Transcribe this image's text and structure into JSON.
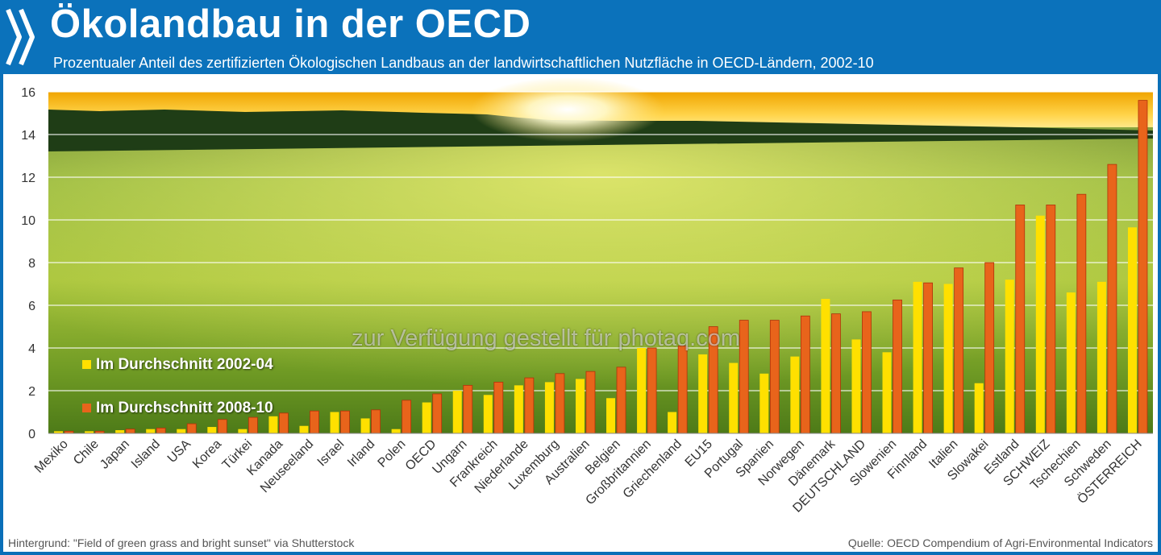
{
  "header": {
    "title": "Ökolandbau in der OECD",
    "subtitle": "Prozentualer Anteil des zertifizierten Ökologischen Landbaus an der landwirtschaftlichen Nutzfläche in OECD-Ländern, 2002-10"
  },
  "footer": {
    "left": "Hintergrund: \"Field of green grass and bright sunset\" via Shutterstock",
    "right": "Quelle: OECD Compendium of Agri-Environmental Indicators"
  },
  "watermark": "zur Verfügung gestellt für photaq.com",
  "colors": {
    "header_bg": "#0b72bb",
    "series_1": "#ffe000",
    "series_2": "#e8641b",
    "bar_outline": "#b0320a",
    "gridline": "#ffffff"
  },
  "chart_data": {
    "type": "bar",
    "categories": [
      "Mexiko",
      "Chile",
      "Japan",
      "Island",
      "USA",
      "Korea",
      "Türkei",
      "Kanada",
      "Neuseeland",
      "Israel",
      "Irland",
      "Polen",
      "OECD",
      "Ungarn",
      "Frankreich",
      "Niederlande",
      "Luxemburg",
      "Australien",
      "Belgien",
      "Großbritannien",
      "Griechenland",
      "EU15",
      "Portugal",
      "Spanien",
      "Norwegen",
      "Dänemark",
      "DEUTSCHLAND",
      "Slowenien",
      "Finnland",
      "Italien",
      "Slowakei",
      "Estland",
      "SCHWEIZ",
      "Tschechien",
      "Schweden",
      "ÖSTERREICH"
    ],
    "series": [
      {
        "name": "Im Durchschnitt 2002-04",
        "values": [
          0.1,
          0.1,
          0.15,
          0.2,
          0.2,
          0.3,
          0.2,
          0.8,
          0.35,
          1.0,
          0.7,
          0.2,
          1.45,
          2.0,
          1.8,
          2.25,
          2.4,
          2.55,
          1.65,
          4.0,
          1.0,
          3.7,
          3.3,
          2.8,
          3.6,
          6.3,
          4.4,
          3.8,
          7.1,
          7.0,
          2.35,
          7.2,
          10.2,
          6.6,
          7.1,
          9.65
        ]
      },
      {
        "name": "Im Durchschnitt 2008-10",
        "values": [
          0.1,
          0.1,
          0.2,
          0.25,
          0.45,
          0.65,
          0.75,
          0.95,
          1.05,
          1.05,
          1.1,
          1.55,
          1.85,
          2.25,
          2.4,
          2.6,
          2.8,
          2.9,
          3.1,
          4.0,
          4.1,
          5.0,
          5.3,
          5.3,
          5.5,
          5.6,
          5.7,
          6.25,
          7.05,
          7.75,
          8.0,
          10.7,
          10.7,
          11.2,
          12.6,
          15.6
        ]
      }
    ],
    "yticks": [
      "0",
      "2",
      "4",
      "6",
      "8",
      "10",
      "12",
      "14",
      "16"
    ],
    "ylim": [
      0,
      16
    ],
    "xlabel": "",
    "ylabel": "",
    "grid": true,
    "legend_position": "left, middle"
  }
}
